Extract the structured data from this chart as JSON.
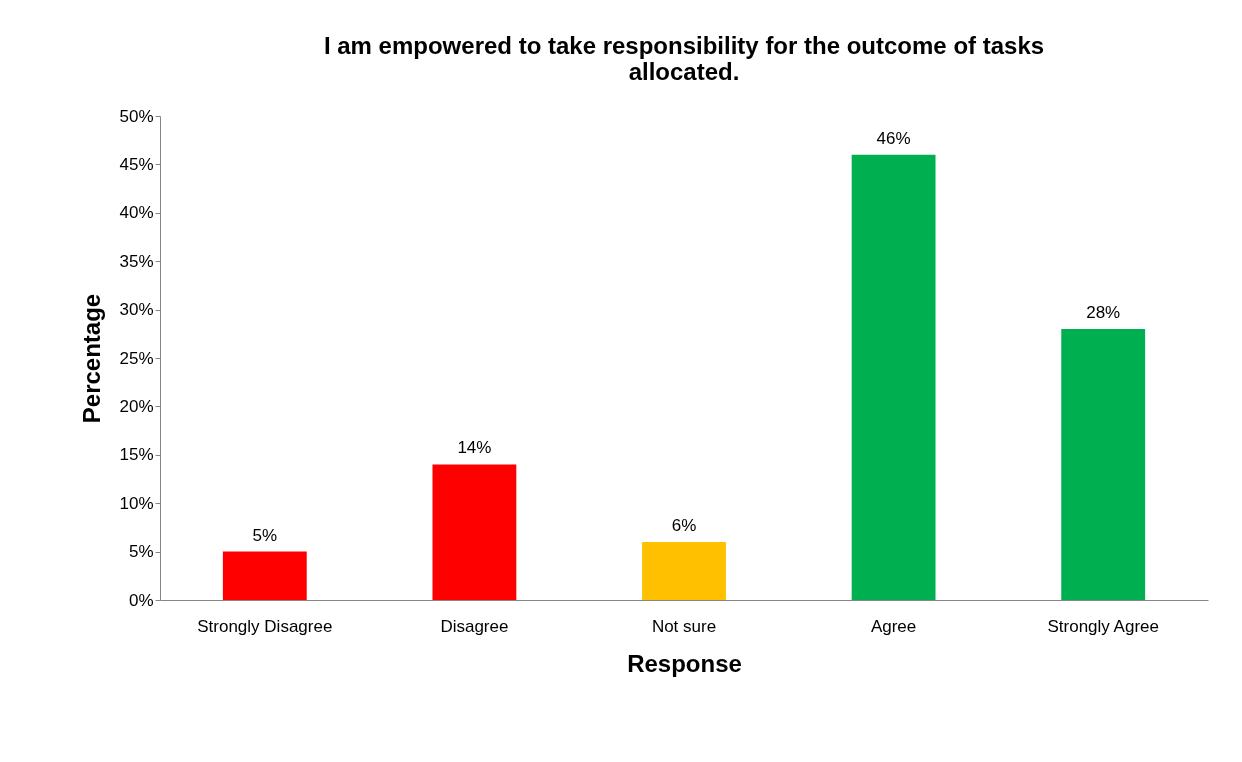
{
  "chart_data": {
    "type": "bar",
    "title": "I am empowered to take responsibility for the outcome of tasks allocated.",
    "xlabel": "Response",
    "ylabel": "Percentage",
    "categories": [
      "Strongly Disagree",
      "Disagree",
      "Not sure",
      "Agree",
      "Strongly Agree"
    ],
    "values": [
      5,
      14,
      6,
      46,
      28
    ],
    "colors": [
      "#ff0000",
      "#ff0000",
      "#ffc000",
      "#00b050",
      "#00b050"
    ],
    "ylim": [
      0,
      50
    ],
    "yticks": [
      {
        "value": 0,
        "label": "0%"
      },
      {
        "value": 5,
        "label": "5%"
      },
      {
        "value": 10,
        "label": "10%"
      },
      {
        "value": 15,
        "label": "15%"
      },
      {
        "value": 20,
        "label": "20%"
      },
      {
        "value": 25,
        "label": "25%"
      },
      {
        "value": 30,
        "label": "30%"
      },
      {
        "value": 35,
        "label": "35%"
      },
      {
        "value": 40,
        "label": "40%"
      },
      {
        "value": 45,
        "label": "45%"
      },
      {
        "value": 50,
        "label": "50%"
      }
    ],
    "value_labels": [
      "5%",
      "14%",
      "6%",
      "46%",
      "28%"
    ],
    "grid": false
  }
}
